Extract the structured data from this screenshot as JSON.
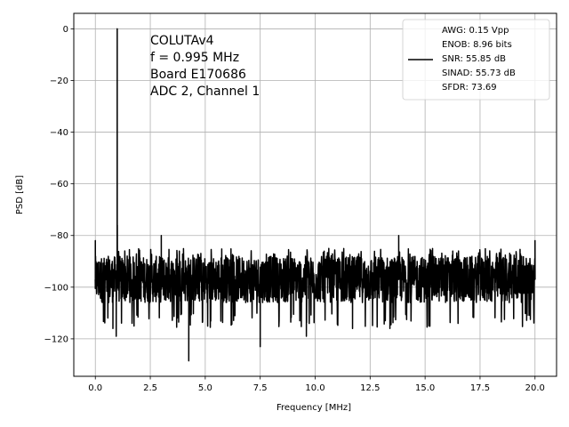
{
  "chart_data": {
    "type": "line",
    "xlabel": "Frequency [MHz]",
    "ylabel": "PSD [dB]",
    "xlim": [
      -0.98,
      20.98
    ],
    "ylim": [
      -134.5,
      6.0
    ],
    "xticks": [
      0.0,
      2.5,
      5.0,
      7.5,
      10.0,
      12.5,
      15.0,
      17.5,
      20.0
    ],
    "xtick_labels": [
      "0.0",
      "2.5",
      "5.0",
      "7.5",
      "10.0",
      "12.5",
      "15.0",
      "17.5",
      "20.0"
    ],
    "yticks": [
      0,
      -20,
      -40,
      -60,
      -80,
      -100,
      -120
    ],
    "ytick_labels": [
      "0",
      "−20",
      "−40",
      "−60",
      "−80",
      "−100",
      "−120"
    ],
    "grid": true,
    "legend_placement": "top-right",
    "annotation": {
      "lines": [
        "COLUTAv4",
        "f = 0.995 MHz",
        "Board E170686",
        "ADC 2, Channel 1"
      ]
    },
    "legend": {
      "lines": [
        "AWG: 0.15 Vpp",
        "ENOB: 8.96 bits",
        "SNR: 55.85 dB",
        "SINAD: 55.73 dB",
        "SFDR: 73.69"
      ]
    },
    "series": [
      {
        "name": "AWG: 0.15 Vpp",
        "color": "#000000",
        "noise_floor_db": -97,
        "noise_range_db": [
          -110,
          -85
        ],
        "x_range": [
          0.0,
          20.0
        ],
        "features": [
          {
            "x": 0.0,
            "y": -82
          },
          {
            "x": 0.995,
            "y": 0
          },
          {
            "x": 1.0,
            "y": -76
          },
          {
            "x": 0.8,
            "y": -116
          },
          {
            "x": 0.95,
            "y": -119
          },
          {
            "x": 3.0,
            "y": -80
          },
          {
            "x": 4.25,
            "y": -128.5
          },
          {
            "x": 7.5,
            "y": -123
          },
          {
            "x": 9.6,
            "y": -119
          },
          {
            "x": 13.8,
            "y": -80
          },
          {
            "x": 11.7,
            "y": -116
          },
          {
            "x": 13.4,
            "y": -116
          },
          {
            "x": 20.0,
            "y": -82
          }
        ]
      }
    ]
  }
}
